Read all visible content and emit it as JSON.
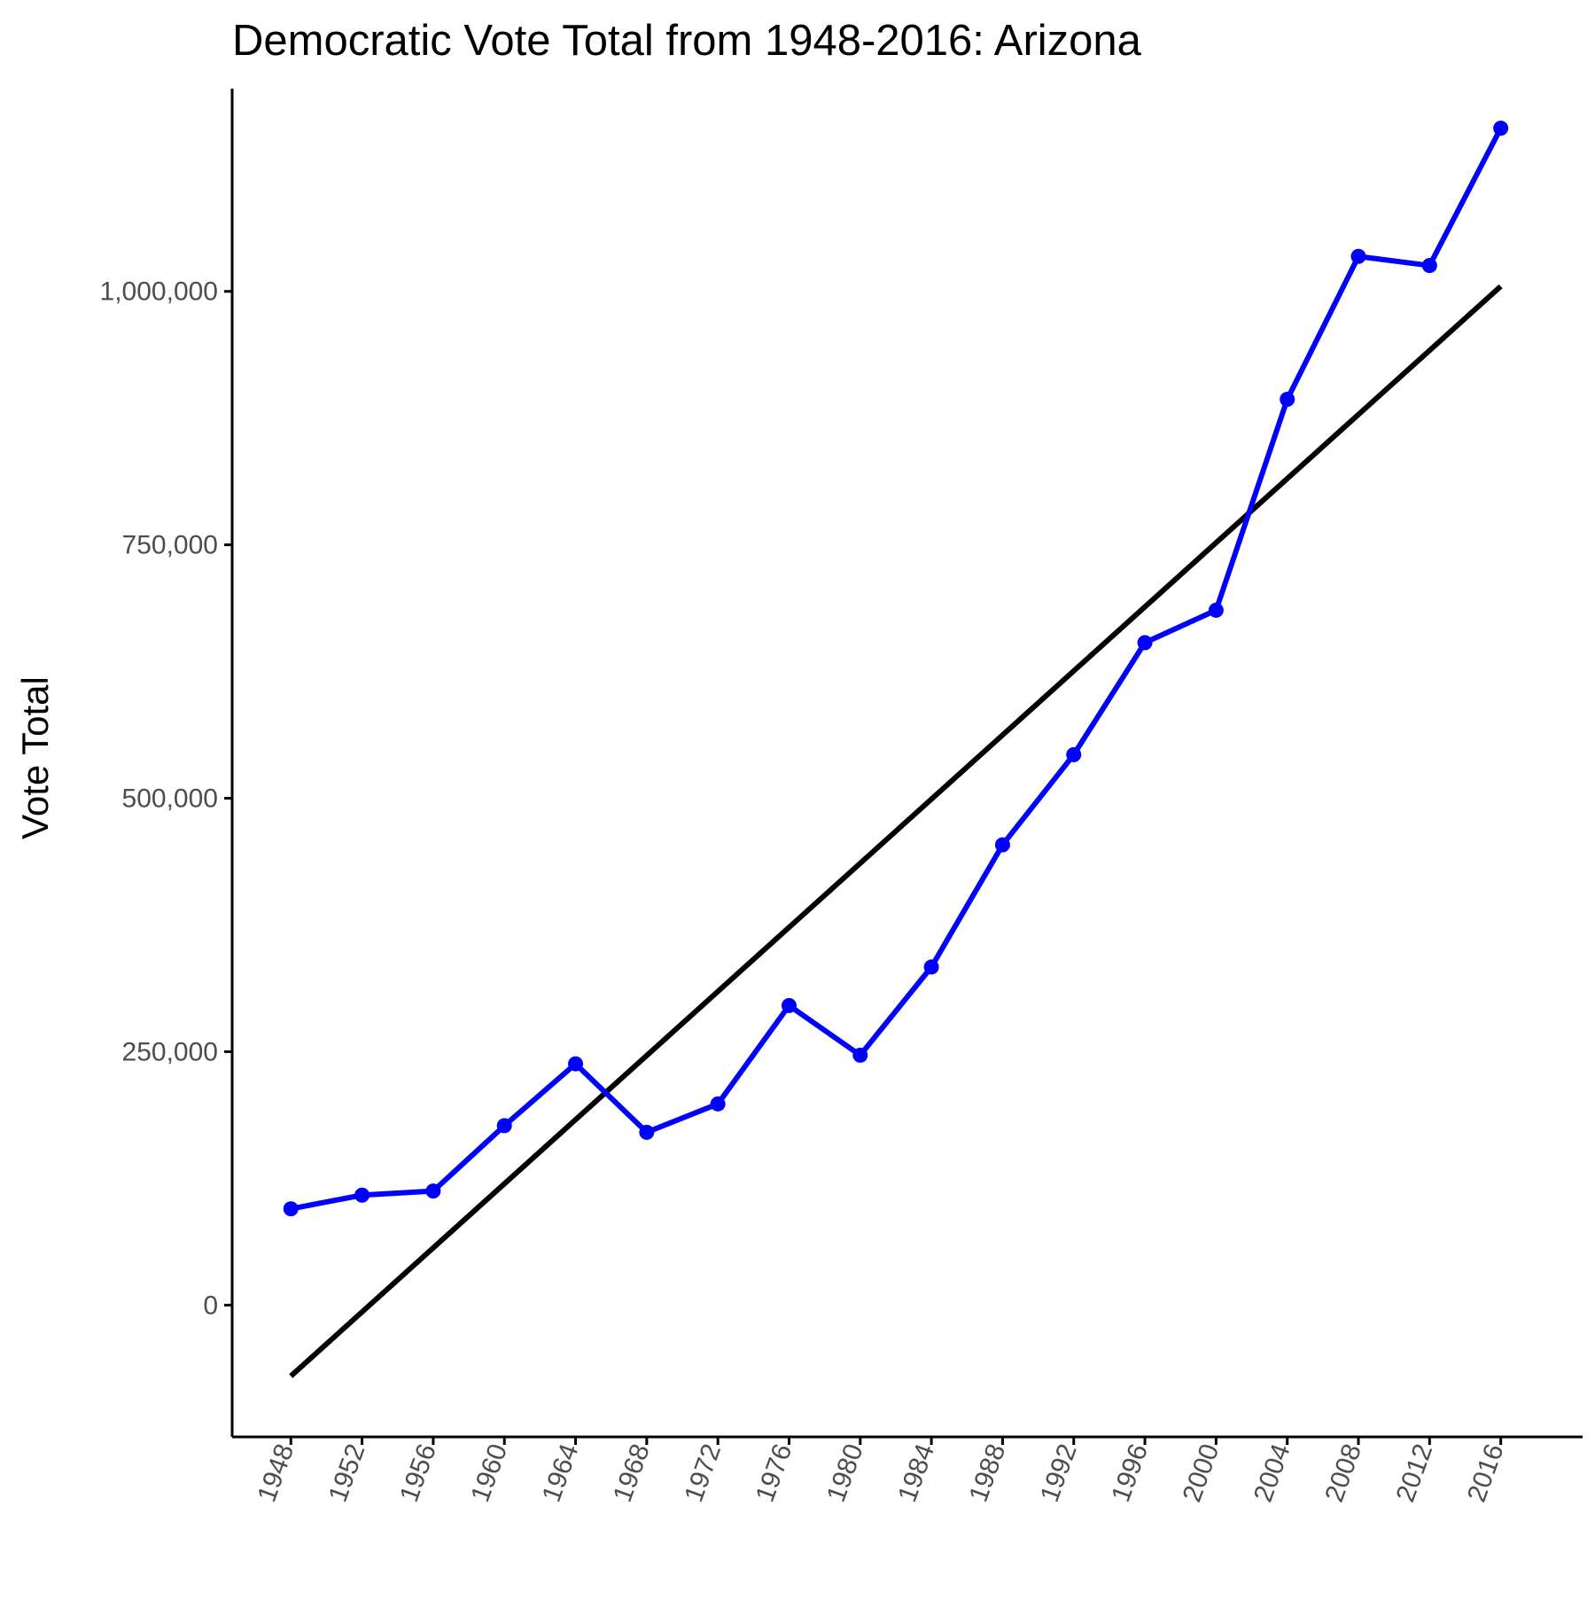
{
  "chart_data": {
    "type": "line",
    "title": "Democratic Vote Total from 1948-2016: Arizona",
    "xlabel": "",
    "ylabel": "Vote Total",
    "x": [
      1948,
      1952,
      1956,
      1960,
      1964,
      1968,
      1972,
      1976,
      1980,
      1984,
      1988,
      1992,
      1996,
      2000,
      2004,
      2008,
      2012,
      2016
    ],
    "x_tick_labels": [
      "1948",
      "1952",
      "1956",
      "1960",
      "1964",
      "1968",
      "1972",
      "1976",
      "1980",
      "1984",
      "1988",
      "1992",
      "1996",
      "2000",
      "2004",
      "2008",
      "2012",
      "2016"
    ],
    "y_ticks": [
      0,
      250000,
      500000,
      750000,
      1000000
    ],
    "y_tick_labels": [
      "0",
      "250,000",
      "500,000",
      "750,000",
      "1,000,000"
    ],
    "xlim": [
      1944.7,
      2020.6
    ],
    "ylim": [
      -130000,
      1200000
    ],
    "x_tick_rotation_deg": -70,
    "series": [
      {
        "kind": "observed",
        "color": "#0000FF",
        "values": [
          95000,
          108500,
          112500,
          177000,
          238000,
          170500,
          198500,
          295500,
          246500,
          333500,
          454000,
          543000,
          653500,
          685500,
          893500,
          1034500,
          1025500,
          1161000
        ]
      },
      {
        "kind": "linear trend",
        "color": "#000000",
        "x": [
          1948,
          2016
        ],
        "values": [
          -70000,
          1005000
        ]
      }
    ],
    "grid": false,
    "legend": "none"
  }
}
